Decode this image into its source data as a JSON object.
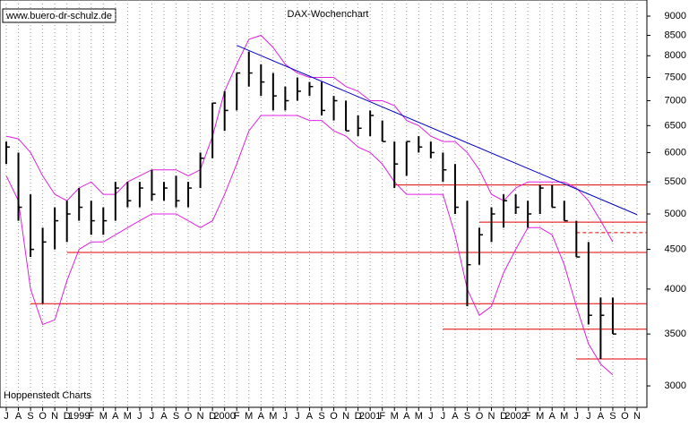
{
  "chart_data": {
    "type": "ohlc",
    "title": "DAX-Wochenchart",
    "source_url": "www.buero-dr-schulz.de",
    "credit": "Hoppenstedt Charts",
    "log_scale": true,
    "grid": "x",
    "bar_color": "#000000",
    "categories": [
      "J",
      "A",
      "S",
      "O",
      "N",
      "D",
      "1999",
      "F",
      "M",
      "A",
      "M",
      "J",
      "J",
      "A",
      "S",
      "O",
      "N",
      "D",
      "2000",
      "F",
      "M",
      "A",
      "M",
      "J",
      "J",
      "A",
      "S",
      "O",
      "N",
      "D",
      "2001",
      "F",
      "M",
      "A",
      "M",
      "J",
      "J",
      "A",
      "S",
      "O",
      "N",
      "D",
      "2002",
      "F",
      "M",
      "A",
      "M",
      "J",
      "J",
      "A",
      "S",
      "O",
      "N"
    ],
    "high": [
      6200,
      6000,
      5300,
      4800,
      5100,
      5200,
      5400,
      5200,
      5100,
      5500,
      5500,
      5500,
      5700,
      5500,
      5600,
      5500,
      6000,
      6960,
      7200,
      7600,
      8100,
      7800,
      7600,
      7300,
      7500,
      7400,
      7400,
      7100,
      7000,
      6700,
      6800,
      6600,
      6200,
      6200,
      6300,
      6200,
      6000,
      5800,
      5200,
      4800,
      5100,
      5300,
      5300,
      5200,
      5450,
      5450,
      5200,
      4900,
      4600,
      3900,
      3900,
      null,
      null
    ],
    "low": [
      5800,
      4900,
      4400,
      3830,
      4500,
      4600,
      4900,
      4700,
      4700,
      4900,
      5100,
      5100,
      5200,
      5200,
      5100,
      5100,
      5400,
      5900,
      6400,
      6800,
      7300,
      7100,
      6800,
      6800,
      7000,
      7100,
      6700,
      6600,
      6400,
      6300,
      6300,
      6200,
      5400,
      5600,
      6000,
      5900,
      5500,
      5000,
      3800,
      4300,
      4600,
      4800,
      5000,
      4800,
      5000,
      5100,
      4900,
      4400,
      3600,
      3250,
      3500,
      null,
      null
    ],
    "close": [
      6100,
      5100,
      4500,
      4600,
      4900,
      5000,
      5100,
      4900,
      4900,
      5400,
      5200,
      5400,
      5300,
      5400,
      5200,
      5400,
      5900,
      6950,
      6800,
      7600,
      7600,
      7400,
      7100,
      7000,
      7200,
      7300,
      6800,
      7000,
      6400,
      6450,
      6700,
      6200,
      5800,
      6200,
      6100,
      6000,
      5700,
      5100,
      4300,
      4700,
      5000,
      5200,
      5100,
      5000,
      5400,
      5100,
      4900,
      4400,
      3700,
      3700,
      3500,
      null,
      null
    ],
    "upper_band": {
      "color": "#e020e0",
      "values": [
        6300,
        6250,
        6000,
        5600,
        5300,
        5200,
        5400,
        5500,
        5300,
        5300,
        5500,
        5600,
        5700,
        5700,
        5700,
        5600,
        5700,
        6300,
        7200,
        7800,
        8400,
        8500,
        8200,
        7800,
        7600,
        7500,
        7500,
        7500,
        7300,
        7200,
        7000,
        7000,
        6900,
        6600,
        6500,
        6300,
        6200,
        6200,
        6000,
        5700,
        5300,
        5200,
        5400,
        5500,
        5500,
        5500,
        5500,
        5400,
        5200,
        4900,
        4600,
        null,
        null
      ]
    },
    "lower_band": {
      "color": "#e020e0",
      "values": [
        5600,
        5200,
        4000,
        3600,
        3650,
        4100,
        4500,
        4600,
        4600,
        4700,
        4800,
        4900,
        5000,
        5000,
        5000,
        4900,
        4800,
        4900,
        5300,
        5800,
        6400,
        6700,
        6700,
        6700,
        6700,
        6600,
        6600,
        6400,
        6300,
        6100,
        6000,
        5800,
        5500,
        5300,
        5300,
        5300,
        5300,
        4700,
        4000,
        3700,
        3800,
        4200,
        4500,
        4800,
        4800,
        4700,
        4300,
        3800,
        3400,
        3200,
        3100,
        null,
        null
      ]
    },
    "levels": [
      {
        "value": 5450,
        "from": 32,
        "color": "#e00000",
        "style": "solid"
      },
      {
        "value": 4880,
        "from": 39,
        "color": "#e00000",
        "style": "solid"
      },
      {
        "value": 4730,
        "from": 47,
        "color": "#e00000",
        "style": "dashed"
      },
      {
        "value": 4460,
        "from": 5,
        "color": "#e00000",
        "style": "solid"
      },
      {
        "value": 3830,
        "from": 2,
        "color": "#e00000",
        "style": "solid"
      },
      {
        "value": 3550,
        "from": 36,
        "color": "#e00000",
        "style": "solid"
      },
      {
        "value": 3250,
        "from": 47,
        "color": "#e00000",
        "style": "solid"
      }
    ],
    "trendline": {
      "color": "#0000c0",
      "x": [
        19,
        52
      ],
      "values": [
        8250,
        4990
      ]
    },
    "ylim": [
      2815,
      9441
    ],
    "yticks": [
      3000,
      3500,
      4000,
      4500,
      5000,
      5500,
      6000,
      6500,
      7000,
      7500,
      8000,
      8500,
      9000
    ]
  }
}
